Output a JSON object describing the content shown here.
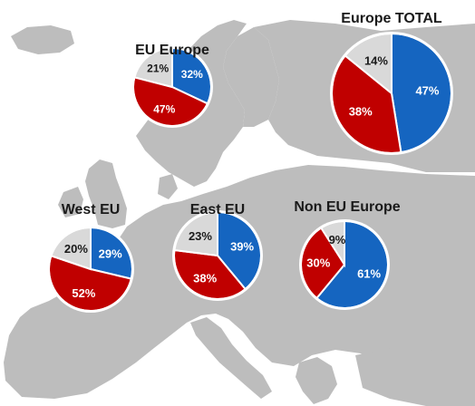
{
  "colors": {
    "blue": "#1565C0",
    "red": "#C00000",
    "grey": "#D9D9D9",
    "map": "#BDBDBD",
    "label_light": "#ffffff",
    "label_dark": "#1a1a1a"
  },
  "chart_data": [
    {
      "type": "pie",
      "title": "EU Europe",
      "slices": [
        {
          "value": 32,
          "label": "32%",
          "color": "blue"
        },
        {
          "value": 47,
          "label": "47%",
          "color": "red"
        },
        {
          "value": 21,
          "label": "21%",
          "color": "grey"
        }
      ]
    },
    {
      "type": "pie",
      "title": "Europe TOTAL",
      "slices": [
        {
          "value": 47,
          "label": "47%",
          "color": "blue"
        },
        {
          "value": 38,
          "label": "38%",
          "color": "red"
        },
        {
          "value": 14,
          "label": "14%",
          "color": "grey"
        }
      ]
    },
    {
      "type": "pie",
      "title": "West EU",
      "slices": [
        {
          "value": 29,
          "label": "29%",
          "color": "blue"
        },
        {
          "value": 52,
          "label": "52%",
          "color": "red"
        },
        {
          "value": 20,
          "label": "20%",
          "color": "grey"
        }
      ]
    },
    {
      "type": "pie",
      "title": "East EU",
      "slices": [
        {
          "value": 39,
          "label": "39%",
          "color": "blue"
        },
        {
          "value": 38,
          "label": "38%",
          "color": "red"
        },
        {
          "value": 23,
          "label": "23%",
          "color": "grey"
        }
      ]
    },
    {
      "type": "pie",
      "title": "Non EU Europe",
      "slices": [
        {
          "value": 61,
          "label": "61%",
          "color": "blue"
        },
        {
          "value": 30,
          "label": "30%",
          "color": "red"
        },
        {
          "value": 9,
          "label": "9%",
          "color": "grey"
        }
      ]
    }
  ]
}
